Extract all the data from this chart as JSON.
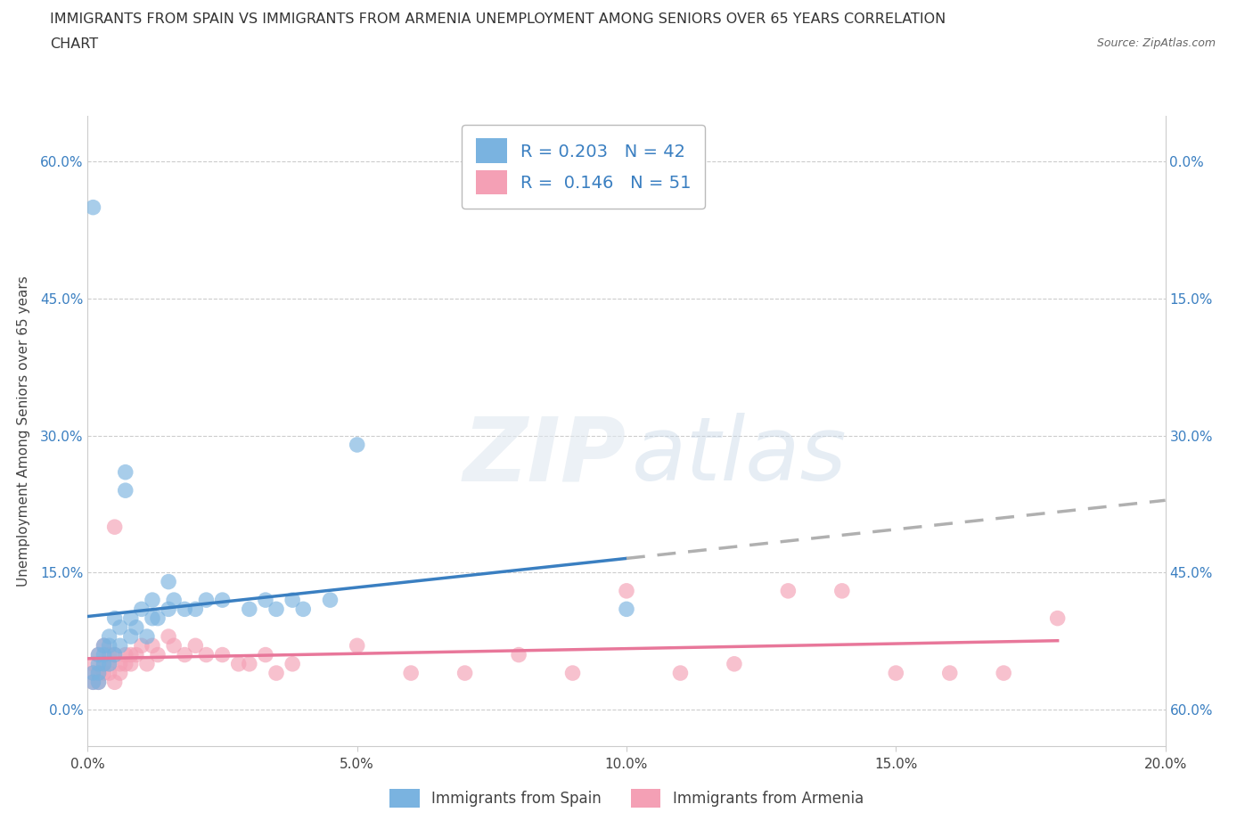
{
  "title_line1": "IMMIGRANTS FROM SPAIN VS IMMIGRANTS FROM ARMENIA UNEMPLOYMENT AMONG SENIORS OVER 65 YEARS CORRELATION",
  "title_line2": "CHART",
  "source_text": "Source: ZipAtlas.com",
  "ylabel": "Unemployment Among Seniors over 65 years",
  "xlim": [
    0.0,
    0.2
  ],
  "ylim": [
    -0.04,
    0.65
  ],
  "yticks": [
    0.0,
    0.15,
    0.3,
    0.45,
    0.6
  ],
  "ytick_labels": [
    "0.0%",
    "15.0%",
    "30.0%",
    "45.0%",
    "60.0%"
  ],
  "xticks": [
    0.0,
    0.05,
    0.1,
    0.15,
    0.2
  ],
  "xtick_labels": [
    "0.0%",
    "5.0%",
    "10.0%",
    "15.0%",
    "20.0%"
  ],
  "right_ytick_labels": [
    "60.0%",
    "45.0%",
    "30.0%",
    "15.0%",
    "0.0%"
  ],
  "spain_color": "#7ab3e0",
  "armenia_color": "#f4a0b5",
  "spain_line_color": "#3a7fc1",
  "armenia_line_color": "#e8779a",
  "trend_extension_color": "#b0b0b0",
  "spain_R": 0.203,
  "spain_N": 42,
  "armenia_R": 0.146,
  "armenia_N": 51,
  "legend_spain_label": "Immigrants from Spain",
  "legend_armenia_label": "Immigrants from Armenia",
  "spain_scatter_x": [
    0.001,
    0.001,
    0.001,
    0.002,
    0.002,
    0.002,
    0.002,
    0.003,
    0.003,
    0.003,
    0.004,
    0.004,
    0.004,
    0.005,
    0.005,
    0.006,
    0.006,
    0.007,
    0.007,
    0.008,
    0.008,
    0.009,
    0.01,
    0.011,
    0.012,
    0.013,
    0.015,
    0.015,
    0.016,
    0.018,
    0.02,
    0.022,
    0.025,
    0.03,
    0.033,
    0.035,
    0.038,
    0.04,
    0.045,
    0.05,
    0.1,
    0.012
  ],
  "spain_scatter_y": [
    0.55,
    0.04,
    0.03,
    0.06,
    0.05,
    0.04,
    0.03,
    0.07,
    0.06,
    0.05,
    0.08,
    0.07,
    0.05,
    0.1,
    0.06,
    0.09,
    0.07,
    0.26,
    0.24,
    0.1,
    0.08,
    0.09,
    0.11,
    0.08,
    0.12,
    0.1,
    0.14,
    0.11,
    0.12,
    0.11,
    0.11,
    0.12,
    0.12,
    0.11,
    0.12,
    0.11,
    0.12,
    0.11,
    0.12,
    0.29,
    0.11,
    0.1
  ],
  "armenia_scatter_x": [
    0.001,
    0.001,
    0.001,
    0.002,
    0.002,
    0.002,
    0.003,
    0.003,
    0.003,
    0.004,
    0.004,
    0.004,
    0.005,
    0.005,
    0.005,
    0.006,
    0.006,
    0.007,
    0.007,
    0.008,
    0.008,
    0.009,
    0.01,
    0.011,
    0.012,
    0.013,
    0.015,
    0.016,
    0.018,
    0.02,
    0.022,
    0.025,
    0.028,
    0.03,
    0.033,
    0.035,
    0.038,
    0.05,
    0.06,
    0.07,
    0.08,
    0.09,
    0.1,
    0.11,
    0.12,
    0.13,
    0.14,
    0.15,
    0.16,
    0.17,
    0.18
  ],
  "armenia_scatter_y": [
    0.03,
    0.04,
    0.05,
    0.03,
    0.04,
    0.06,
    0.04,
    0.05,
    0.07,
    0.04,
    0.05,
    0.06,
    0.03,
    0.06,
    0.2,
    0.04,
    0.05,
    0.05,
    0.06,
    0.06,
    0.05,
    0.06,
    0.07,
    0.05,
    0.07,
    0.06,
    0.08,
    0.07,
    0.06,
    0.07,
    0.06,
    0.06,
    0.05,
    0.05,
    0.06,
    0.04,
    0.05,
    0.07,
    0.04,
    0.04,
    0.06,
    0.04,
    0.13,
    0.04,
    0.05,
    0.13,
    0.13,
    0.04,
    0.04,
    0.04,
    0.1
  ],
  "background_color": "#ffffff",
  "grid_color": "#cccccc"
}
